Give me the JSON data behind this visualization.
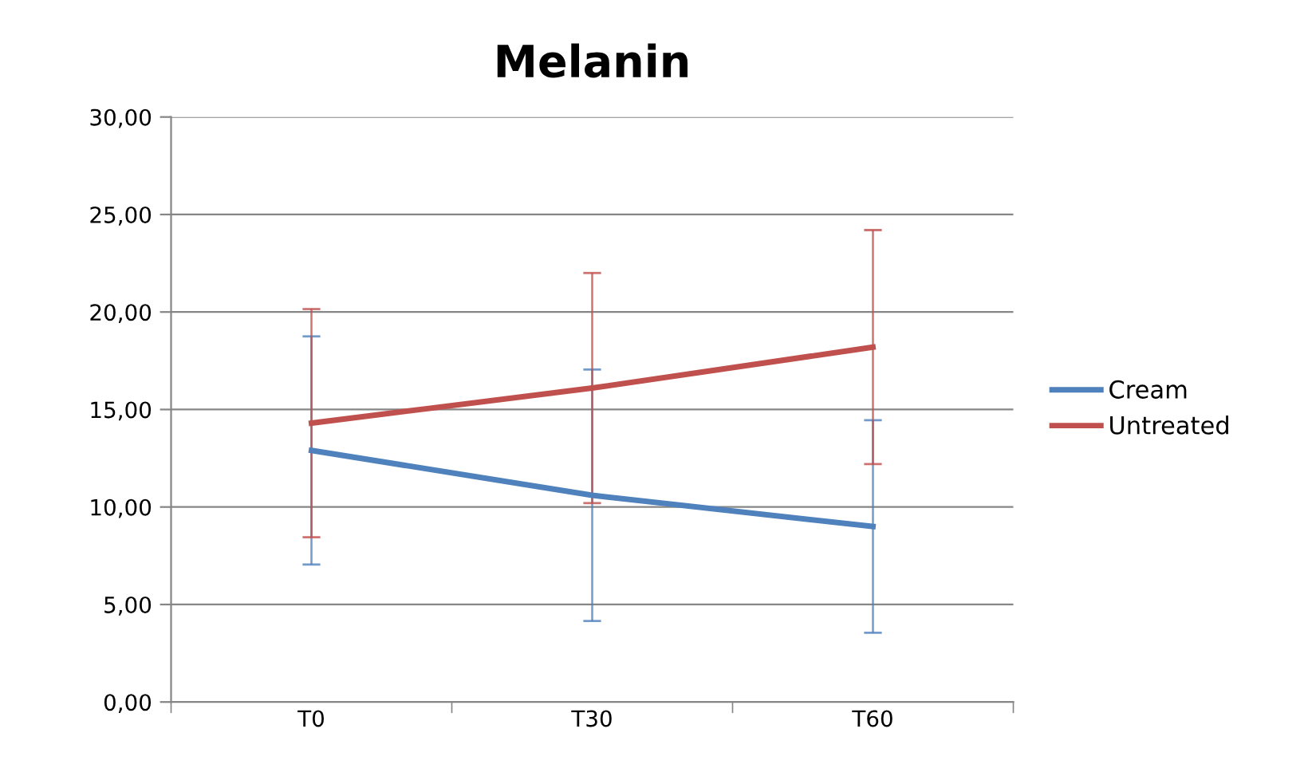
{
  "chart_data": {
    "type": "line",
    "title": "Melanin",
    "categories": [
      "T0",
      "T30",
      "T60"
    ],
    "series": [
      {
        "name": "Cream",
        "color": "#4f81bd",
        "values": [
          12.9,
          10.6,
          9.0
        ],
        "errors": [
          5.85,
          6.45,
          5.45
        ]
      },
      {
        "name": "Untreated",
        "color": "#c0504d",
        "values": [
          14.3,
          16.1,
          18.2
        ],
        "errors": [
          5.85,
          5.9,
          6.0
        ]
      }
    ],
    "ylim": [
      0,
      30
    ],
    "yticks": [
      {
        "value": 0,
        "label": "0,00"
      },
      {
        "value": 5,
        "label": "5,00"
      },
      {
        "value": 10,
        "label": "10,00"
      },
      {
        "value": 15,
        "label": "15,00"
      },
      {
        "value": 20,
        "label": "20,00"
      },
      {
        "value": 25,
        "label": "25,00"
      },
      {
        "value": 30,
        "label": "30,00"
      }
    ],
    "grid": "y",
    "legend": "right",
    "marker": "none",
    "line_style": "solid"
  }
}
